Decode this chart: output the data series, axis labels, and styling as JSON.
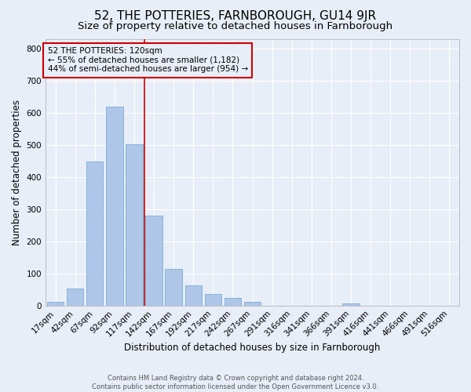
{
  "title": "52, THE POTTERIES, FARNBOROUGH, GU14 9JR",
  "subtitle": "Size of property relative to detached houses in Farnborough",
  "xlabel": "Distribution of detached houses by size in Farnborough",
  "ylabel": "Number of detached properties",
  "footer_line1": "Contains HM Land Registry data © Crown copyright and database right 2024.",
  "footer_line2": "Contains public sector information licensed under the Open Government Licence v3.0.",
  "bar_labels": [
    "17sqm",
    "42sqm",
    "67sqm",
    "92sqm",
    "117sqm",
    "142sqm",
    "167sqm",
    "192sqm",
    "217sqm",
    "242sqm",
    "267sqm",
    "291sqm",
    "316sqm",
    "341sqm",
    "366sqm",
    "391sqm",
    "416sqm",
    "441sqm",
    "466sqm",
    "491sqm",
    "516sqm"
  ],
  "bar_values": [
    12,
    53,
    448,
    621,
    503,
    280,
    115,
    62,
    37,
    23,
    11,
    0,
    0,
    0,
    0,
    7,
    0,
    0,
    0,
    0,
    0
  ],
  "bar_color": "#aec6e8",
  "bar_edge_color": "#7aafd4",
  "background_color": "#e8eef7",
  "grid_color": "#ffffff",
  "vline_x": 4.5,
  "vline_color": "#cc0000",
  "annotation_text": "52 THE POTTERIES: 120sqm\n← 55% of detached houses are smaller (1,182)\n44% of semi-detached houses are larger (954) →",
  "annotation_box_color": "#cc0000",
  "ylim": [
    0,
    830
  ],
  "yticks": [
    0,
    100,
    200,
    300,
    400,
    500,
    600,
    700,
    800
  ],
  "title_fontsize": 11,
  "subtitle_fontsize": 9.5,
  "axis_label_fontsize": 8.5,
  "tick_fontsize": 7.5,
  "annot_fontsize": 7.5,
  "footer_fontsize": 6.0
}
